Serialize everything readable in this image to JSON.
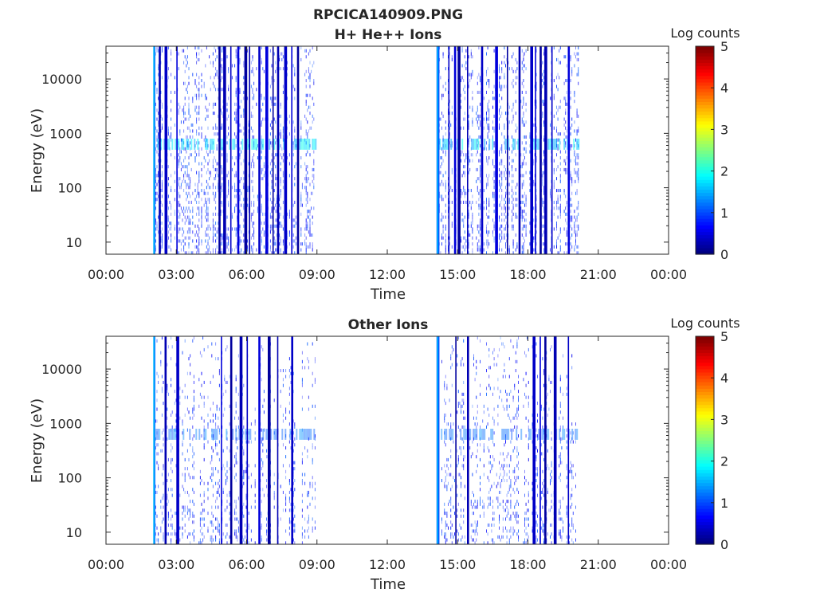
{
  "figure": {
    "title_line1": "RPCICA140909.PNG"
  },
  "panels": [
    {
      "title": "H+ He++ Ions",
      "xlabel": "Time",
      "ylabel": "Energy (eV)",
      "colorbar_label": "Log counts"
    },
    {
      "title": "Other Ions",
      "xlabel": "Time",
      "ylabel": "Energy (eV)",
      "colorbar_label": "Log counts"
    }
  ],
  "chart_data": [
    {
      "type": "heatmap",
      "title": "H+ He++ Ions",
      "xlabel": "Time",
      "ylabel": "Energy (eV)",
      "x_ticks": [
        "00:00",
        "03:00",
        "06:00",
        "09:00",
        "12:00",
        "15:00",
        "18:00",
        "21:00",
        "00:00"
      ],
      "x_range_hours": [
        0,
        24
      ],
      "y_scale": "log",
      "y_ticks": [
        10,
        100,
        1000,
        10000
      ],
      "y_tick_labels": [
        "10",
        "100",
        "1000",
        "10000"
      ],
      "ylim": [
        6,
        40000
      ],
      "colorbar": {
        "label": "Log counts",
        "range": [
          0,
          5
        ],
        "ticks": [
          "0",
          "1",
          "2",
          "3",
          "4",
          "5"
        ],
        "colormap": "jet"
      },
      "data_intervals_hours": [
        [
          2.05,
          8.95
        ],
        [
          14.15,
          20.15
        ]
      ],
      "enhanced_band_eV": [
        500,
        800
      ],
      "strong_stripes_hours": [
        2.05,
        2.25,
        2.5,
        3.0,
        4.8,
        5.0,
        5.3,
        5.6,
        5.9,
        6.1,
        6.5,
        6.8,
        7.1,
        7.3,
        7.6,
        7.9,
        8.15,
        14.1,
        14.6,
        14.85,
        15.0,
        15.4,
        16.0,
        16.6,
        17.1,
        17.6,
        18.1,
        18.3,
        18.5,
        18.7,
        19.0,
        19.7
      ]
    },
    {
      "type": "heatmap",
      "title": "Other Ions",
      "xlabel": "Time",
      "ylabel": "Energy (eV)",
      "x_ticks": [
        "00:00",
        "03:00",
        "06:00",
        "09:00",
        "12:00",
        "15:00",
        "18:00",
        "21:00",
        "00:00"
      ],
      "x_range_hours": [
        0,
        24
      ],
      "y_scale": "log",
      "y_ticks": [
        10,
        100,
        1000,
        10000
      ],
      "y_tick_labels": [
        "10",
        "100",
        "1000",
        "10000"
      ],
      "ylim": [
        6,
        40000
      ],
      "colorbar": {
        "label": "Log counts",
        "range": [
          0,
          5
        ],
        "ticks": [
          "0",
          "1",
          "2",
          "3",
          "4",
          "5"
        ],
        "colormap": "jet"
      },
      "data_intervals_hours": [
        [
          2.05,
          8.95
        ],
        [
          14.15,
          20.15
        ]
      ],
      "enhanced_band_eV": [
        500,
        800
      ],
      "strong_stripes_hours": [
        2.05,
        2.5,
        3.0,
        4.9,
        5.3,
        5.7,
        6.0,
        6.5,
        6.9,
        7.3,
        7.9,
        14.1,
        14.9,
        15.4,
        18.2,
        18.5,
        18.7,
        19.1,
        19.7
      ]
    }
  ]
}
